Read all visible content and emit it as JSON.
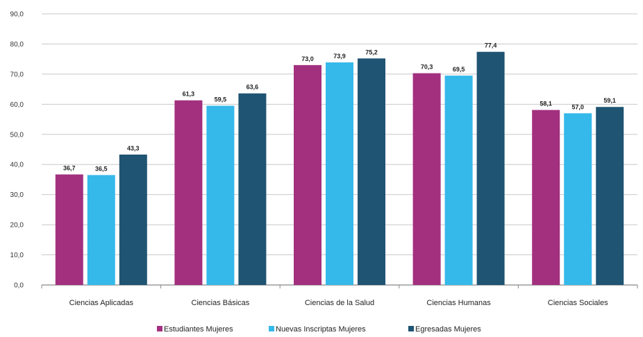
{
  "chart_data": {
    "type": "bar",
    "categories": [
      "Ciencias Aplicadas",
      "Ciencias Básicas",
      "Ciencias de la Salud",
      "Ciencias Humanas",
      "Ciencias Sociales"
    ],
    "series": [
      {
        "name": "Estudiantes Mujeres",
        "color": "#a3307f",
        "values": [
          36.7,
          61.3,
          73.0,
          70.3,
          58.1
        ],
        "labels": [
          "36,7",
          "61,3",
          "73,0",
          "70,3",
          "58,1"
        ]
      },
      {
        "name": "Nuevas Inscriptas Mujeres",
        "color": "#35b9ea",
        "values": [
          36.5,
          59.5,
          73.9,
          69.5,
          57.0
        ],
        "labels": [
          "36,5",
          "59,5",
          "73,9",
          "69,5",
          "57,0"
        ]
      },
      {
        "name": "Egresadas Mujeres",
        "color": "#1f5472",
        "values": [
          43.3,
          63.6,
          75.2,
          77.4,
          59.1
        ],
        "labels": [
          "43,3",
          "63,6",
          "75,2",
          "77,4",
          "59,1"
        ]
      }
    ],
    "yticks": [
      "0,0",
      "10,0",
      "20,0",
      "30,0",
      "40,0",
      "50,0",
      "60,0",
      "70,0",
      "80,0",
      "90,0"
    ],
    "ylim": [
      0,
      90
    ],
    "grid": true,
    "legend_position": "bottom",
    "title": "",
    "xlabel": "",
    "ylabel": ""
  }
}
